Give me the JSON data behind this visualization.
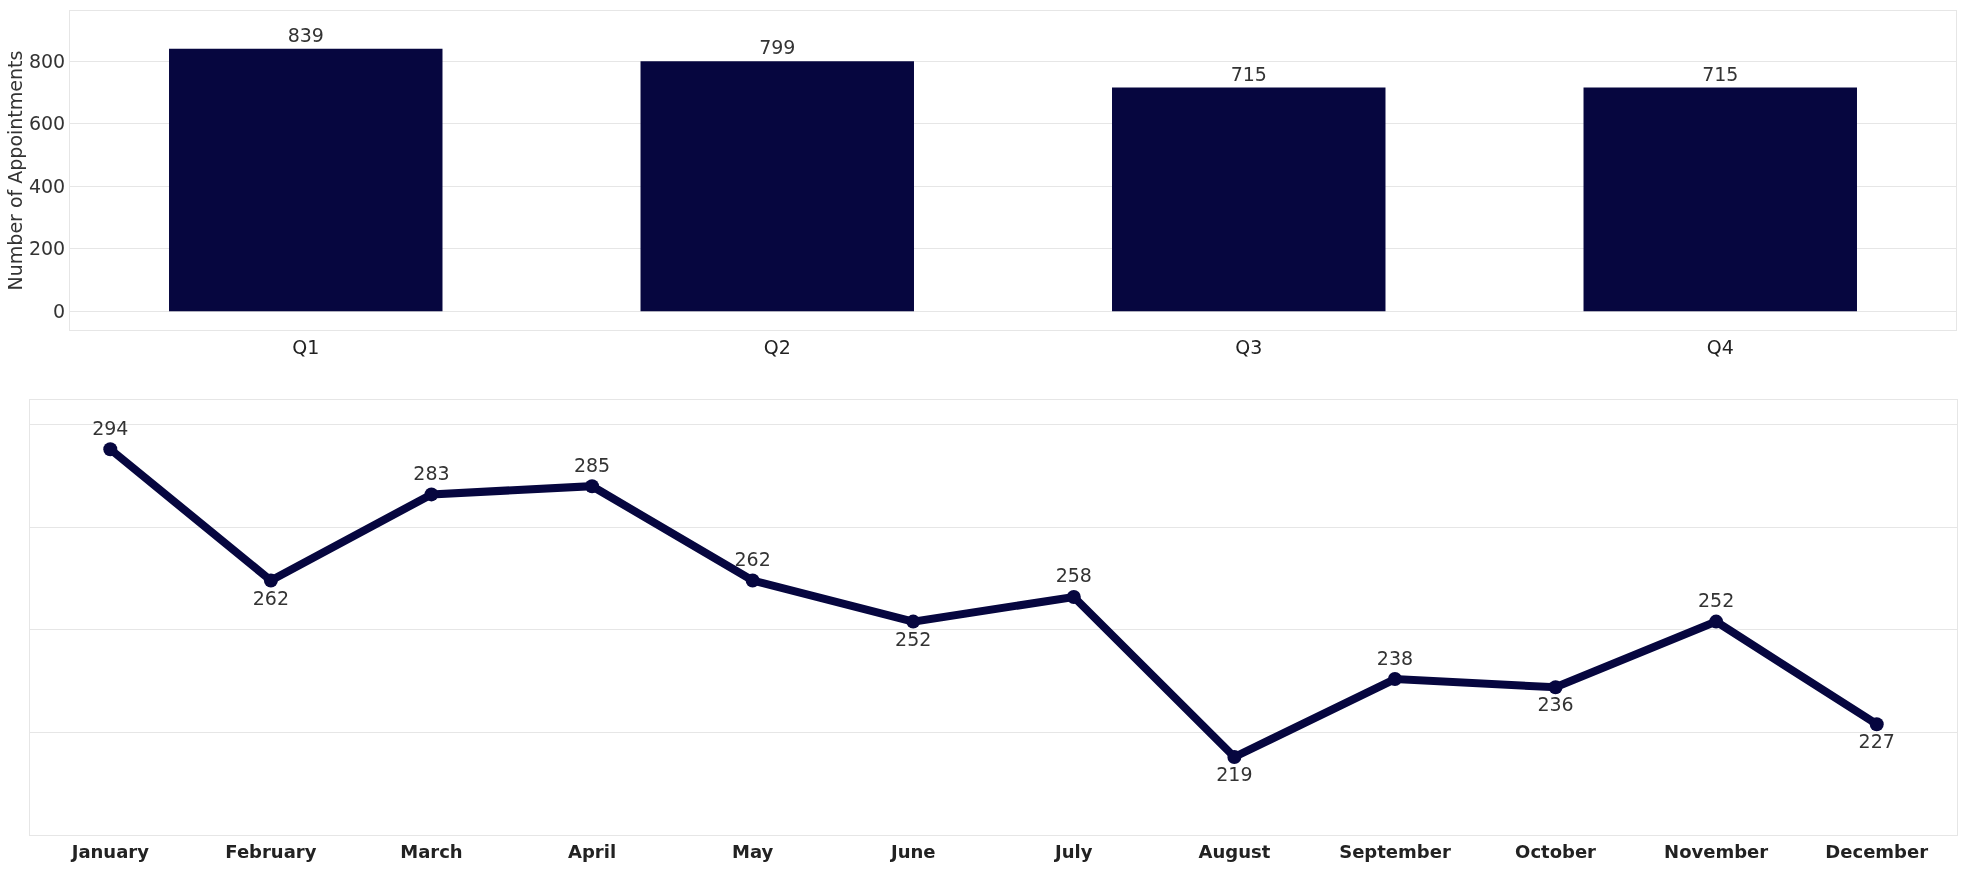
{
  "chart_data": [
    {
      "type": "bar",
      "ylabel": "Number of Appointments",
      "categories": [
        "Q1",
        "Q2",
        "Q3",
        "Q4"
      ],
      "values": [
        839,
        799,
        715,
        715
      ],
      "color": "#06063f",
      "data_labels": true,
      "grid": "y",
      "ylim": [
        -60,
        960
      ],
      "yticks": [
        0,
        200,
        400,
        600,
        800
      ],
      "legend": false
    },
    {
      "type": "line",
      "categories": [
        "January",
        "February",
        "March",
        "April",
        "May",
        "June",
        "July",
        "August",
        "September",
        "October",
        "November",
        "December"
      ],
      "values": [
        294,
        262,
        283,
        285,
        262,
        252,
        258,
        219,
        238,
        236,
        252,
        227
      ],
      "color": "#06063f",
      "data_labels": true,
      "grid": "y",
      "ylim": [
        200,
        306
      ],
      "yticks": [
        {
          "value": 225,
          "label": null
        },
        {
          "value": 250,
          "label": null
        },
        {
          "value": 275,
          "label": null
        },
        {
          "value": 300,
          "label": null
        }
      ],
      "tick_labels": "x",
      "marker": "circle",
      "line_style": "solid",
      "legend": false
    }
  ]
}
